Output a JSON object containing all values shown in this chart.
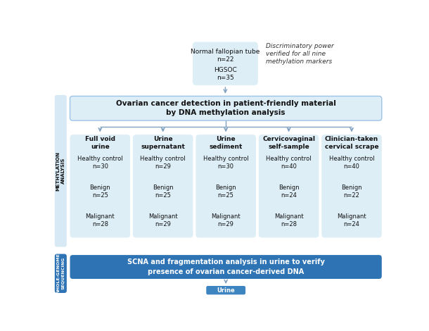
{
  "bg_color": "#ffffff",
  "light_blue_bg": "#ddeef7",
  "dark_blue_box": "#2e74b5",
  "border_color": "#9dc3e6",
  "arrow_color": "#7f9fbf",
  "side_methylation_color": "#d6e9f5",
  "side_sequencing_color": "#2e74b5",
  "top_box_color": "#ddeef7",
  "italic_note": "Discriminatory power\nverified for all nine\nmethylation markers",
  "main_box_text": "Ovarian cancer detection in patient-friendly material\nby DNA methylation analysis",
  "bottom_box_text": "SCNA and fragmentation analysis in urine to verify\npresence of ovarian cancer-derived DNA",
  "columns": [
    {
      "title": "Full void\nurine",
      "items": [
        "Healthy control\nn=30",
        "Benign\nn=25",
        "Malignant\nn=28"
      ]
    },
    {
      "title": "Urine\nsupernatant",
      "items": [
        "Healthy control\nn=29",
        "Benign\nn=25",
        "Malignant\nn=29"
      ]
    },
    {
      "title": "Urine\nsediment",
      "items": [
        "Healthy control\nn=30",
        "Benign\nn=25",
        "Malignant\nn=29"
      ]
    },
    {
      "title": "Cervicovaginal\nself-sample",
      "items": [
        "Healthy control\nn=40",
        "Benign\nn=24",
        "Malignant\nn=28"
      ]
    },
    {
      "title": "Clinician-taken\ncervical scrape",
      "items": [
        "Healthy control\nn=40",
        "Benign\nn=22",
        "Malignant\nn=24"
      ]
    }
  ]
}
